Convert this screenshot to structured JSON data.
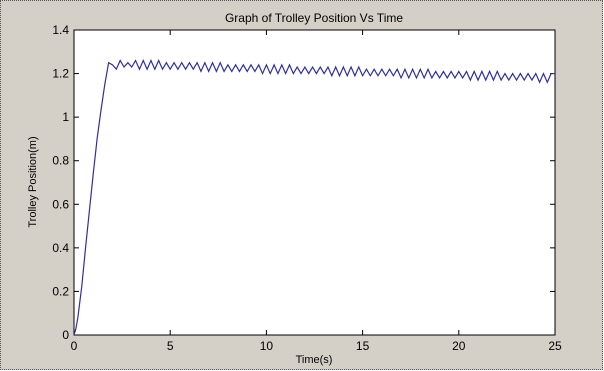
{
  "chart_data": {
    "type": "line",
    "title": "Graph of Trolley Position Vs Time",
    "xlabel": "Time(s)",
    "ylabel": "Trolley Position(m)",
    "xlim": [
      0,
      25
    ],
    "ylim": [
      0,
      1.4
    ],
    "xticks": [
      0,
      5,
      10,
      15,
      20,
      25
    ],
    "yticks": [
      0,
      0.2,
      0.4,
      0.6,
      0.8,
      1,
      1.2,
      1.4
    ],
    "xtick_labels": [
      "0",
      "5",
      "10",
      "15",
      "20",
      "25"
    ],
    "ytick_labels": [
      "0",
      "0.2",
      "0.4",
      "0.6",
      "0.8",
      "1",
      "1.2",
      "1.4"
    ],
    "grid": false,
    "colors": {
      "line": "#2f2fa0",
      "axes_bg": "#ffffff",
      "figure_bg": "#d4d0c8"
    },
    "series": [
      {
        "x": [
          0,
          0.1,
          0.2,
          0.4,
          0.6,
          0.8,
          1.0,
          1.2,
          1.4,
          1.6,
          1.8,
          2.0,
          2.2,
          2.4,
          2.6,
          2.8,
          3.0,
          3.2,
          3.4,
          3.6,
          3.8,
          4.0,
          4.2,
          4.4,
          4.6,
          4.8,
          5.0,
          5.2,
          5.4,
          5.6,
          5.8,
          6.0,
          6.2,
          6.4,
          6.6,
          6.8,
          7.0,
          7.2,
          7.4,
          7.6,
          7.8,
          8.0,
          8.2,
          8.4,
          8.6,
          8.8,
          9.0,
          9.2,
          9.4,
          9.6,
          9.8,
          10.0,
          10.2,
          10.4,
          10.6,
          10.8,
          11.0,
          11.2,
          11.4,
          11.6,
          11.8,
          12.0,
          12.2,
          12.4,
          12.6,
          12.8,
          13.0,
          13.2,
          13.4,
          13.6,
          13.8,
          14.0,
          14.2,
          14.4,
          14.6,
          14.8,
          15.0,
          15.2,
          15.4,
          15.6,
          15.8,
          16.0,
          16.2,
          16.4,
          16.6,
          16.8,
          17.0,
          17.2,
          17.4,
          17.6,
          17.8,
          18.0,
          18.2,
          18.4,
          18.6,
          18.8,
          19.0,
          19.2,
          19.4,
          19.6,
          19.8,
          20.0,
          20.2,
          20.4,
          20.6,
          20.8,
          21.0,
          21.2,
          21.4,
          21.6,
          21.8,
          22.0,
          22.2,
          22.4,
          22.6,
          22.8,
          23.0,
          23.2,
          23.4,
          23.6,
          23.8,
          24.0,
          24.2,
          24.4,
          24.6,
          24.8,
          25.0
        ],
        "y": [
          0,
          0.03,
          0.08,
          0.22,
          0.4,
          0.57,
          0.74,
          0.9,
          1.03,
          1.15,
          1.25,
          1.24,
          1.22,
          1.26,
          1.23,
          1.25,
          1.23,
          1.26,
          1.22,
          1.26,
          1.22,
          1.26,
          1.22,
          1.26,
          1.22,
          1.25,
          1.22,
          1.25,
          1.22,
          1.25,
          1.22,
          1.25,
          1.22,
          1.25,
          1.21,
          1.25,
          1.21,
          1.25,
          1.21,
          1.25,
          1.21,
          1.24,
          1.21,
          1.24,
          1.21,
          1.24,
          1.21,
          1.24,
          1.21,
          1.24,
          1.2,
          1.24,
          1.2,
          1.24,
          1.2,
          1.24,
          1.2,
          1.24,
          1.2,
          1.23,
          1.2,
          1.23,
          1.2,
          1.23,
          1.2,
          1.23,
          1.2,
          1.23,
          1.19,
          1.23,
          1.19,
          1.23,
          1.19,
          1.23,
          1.19,
          1.23,
          1.19,
          1.22,
          1.19,
          1.22,
          1.19,
          1.22,
          1.19,
          1.22,
          1.19,
          1.22,
          1.18,
          1.22,
          1.18,
          1.22,
          1.18,
          1.22,
          1.18,
          1.22,
          1.18,
          1.21,
          1.18,
          1.21,
          1.18,
          1.21,
          1.18,
          1.21,
          1.18,
          1.21,
          1.17,
          1.21,
          1.17,
          1.21,
          1.17,
          1.21,
          1.17,
          1.21,
          1.17,
          1.2,
          1.17,
          1.2,
          1.17,
          1.2,
          1.17,
          1.2,
          1.17,
          1.2,
          1.16,
          1.2,
          1.16,
          1.2,
          1.2
        ]
      }
    ]
  }
}
